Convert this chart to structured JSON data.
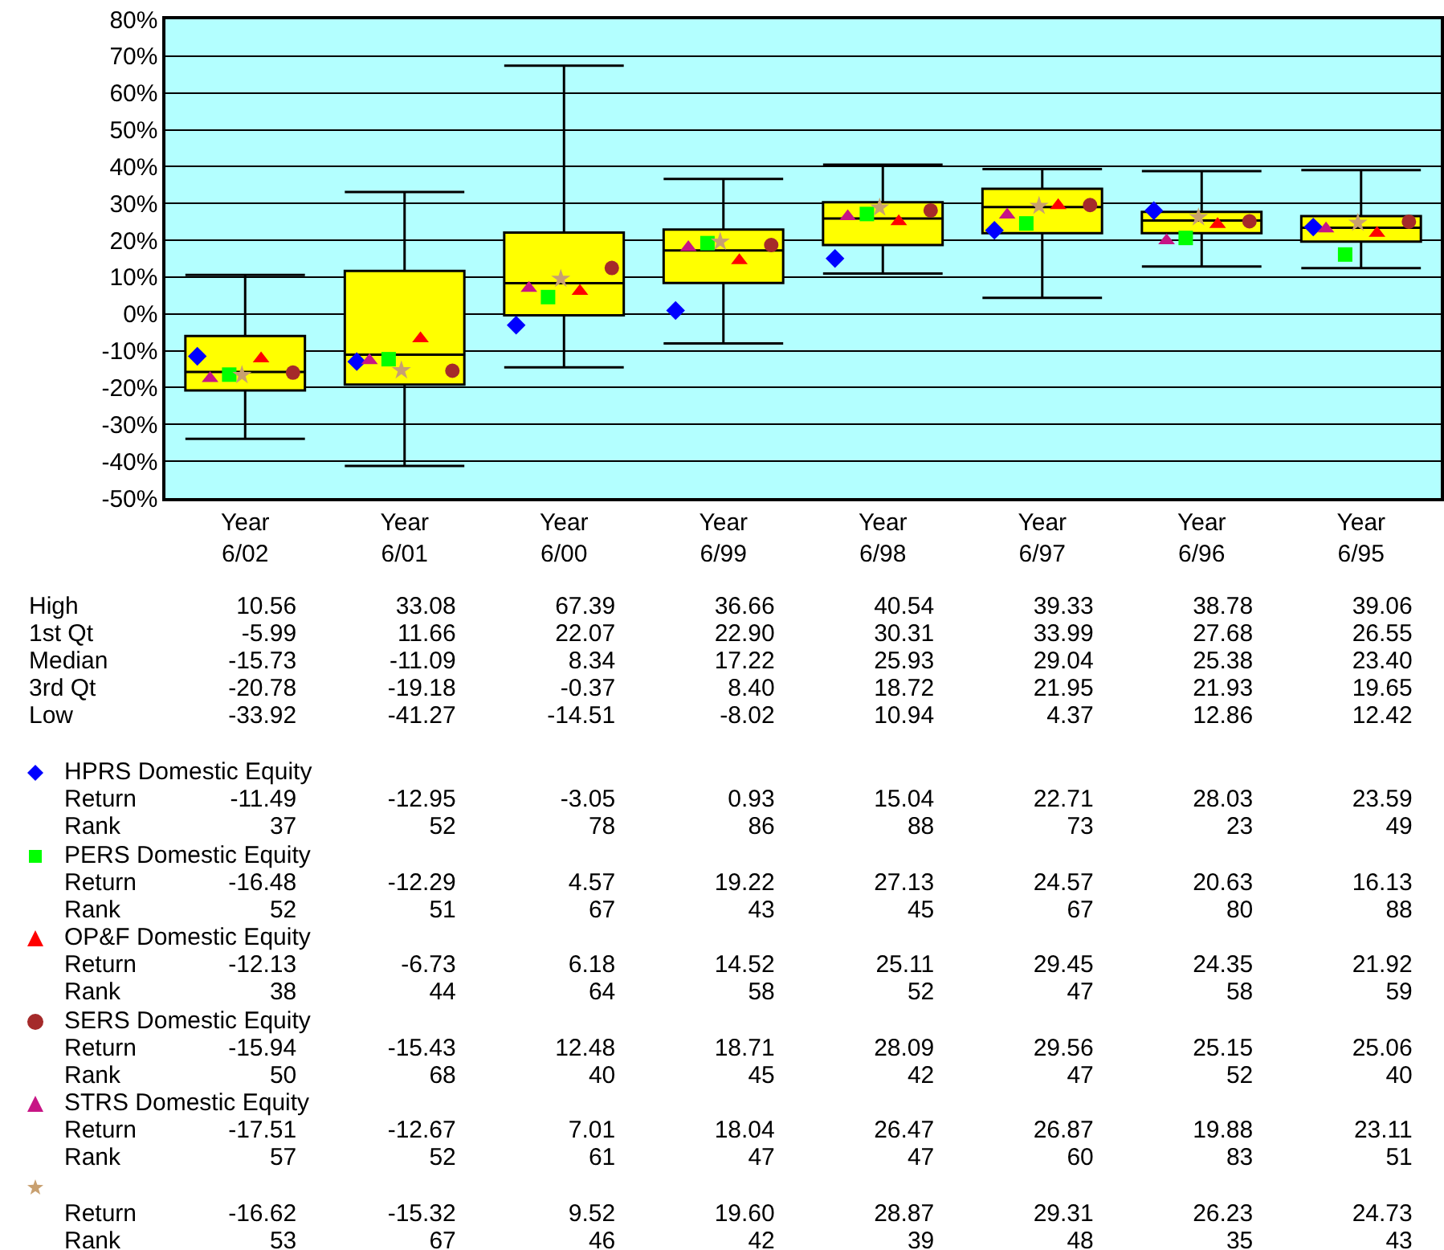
{
  "chart_data": {
    "type": "box",
    "categories": [
      "Year\n6/02",
      "Year\n6/01",
      "Year\n6/00",
      "Year\n6/99",
      "Year\n6/98",
      "Year\n6/97",
      "Year\n6/96",
      "Year\n6/95"
    ],
    "boxes": [
      {
        "low": -33.92,
        "q1": -20.78,
        "median": -15.73,
        "q3": -5.99,
        "high": 10.56
      },
      {
        "low": -41.27,
        "q1": -19.18,
        "median": -11.09,
        "q3": 11.66,
        "high": 33.08
      },
      {
        "low": -14.51,
        "q1": -0.37,
        "median": 8.34,
        "q3": 22.07,
        "high": 67.39
      },
      {
        "low": -8.02,
        "q1": 8.4,
        "median": 17.22,
        "q3": 22.9,
        "high": 36.66
      },
      {
        "low": 10.94,
        "q1": 18.72,
        "median": 25.93,
        "q3": 30.31,
        "high": 40.54
      },
      {
        "low": 4.37,
        "q1": 21.95,
        "median": 29.04,
        "q3": 33.99,
        "high": 39.33
      },
      {
        "low": 12.86,
        "q1": 21.93,
        "median": 25.38,
        "q3": 27.68,
        "high": 38.78
      },
      {
        "low": 12.42,
        "q1": 19.65,
        "median": 23.4,
        "q3": 26.55,
        "high": 39.06
      }
    ],
    "series": [
      {
        "name": "HPRS Domestic Equity",
        "type": "scatter",
        "marker": "diamond",
        "color": "#0000ff",
        "values": [
          -11.49,
          -12.95,
          -3.05,
          0.93,
          15.04,
          22.71,
          28.03,
          23.59
        ]
      },
      {
        "name": "PERS Domestic Equity",
        "type": "scatter",
        "marker": "square",
        "color": "#00ff00",
        "values": [
          -16.48,
          -12.29,
          4.57,
          19.22,
          27.13,
          24.57,
          20.63,
          16.13
        ]
      },
      {
        "name": "OP&F Domestic Equity",
        "type": "scatter",
        "marker": "triangle",
        "color": "#ff0000",
        "values": [
          -12.13,
          -6.73,
          6.18,
          14.52,
          25.11,
          29.45,
          24.35,
          21.92
        ]
      },
      {
        "name": "SERS Domestic Equity",
        "type": "scatter",
        "marker": "circle",
        "color": "#a52a2a",
        "values": [
          -15.94,
          -15.43,
          12.48,
          18.71,
          28.09,
          29.56,
          25.15,
          25.06
        ]
      },
      {
        "name": "STRS Domestic Equity",
        "type": "scatter",
        "marker": "triangle",
        "color": "#c71585",
        "values": [
          -17.51,
          -12.67,
          7.01,
          18.04,
          26.47,
          26.87,
          19.88,
          23.11
        ]
      },
      {
        "type": "scatter",
        "marker": "star",
        "color": "#c8a070",
        "values": [
          -16.62,
          -15.32,
          9.52,
          19.6,
          28.87,
          29.31,
          26.23,
          24.73
        ],
        "value_labels": [
          null,
          null,
          null,
          null,
          null,
          null,
          null,
          null
        ]
      }
    ],
    "ylim": [
      -50,
      80
    ],
    "yticks": [
      {
        "value": -50,
        "label": "-50%"
      },
      {
        "value": -40,
        "label": "-40%"
      },
      {
        "value": -30,
        "label": "-30%"
      },
      {
        "value": -20,
        "label": "-20%"
      },
      {
        "value": -10,
        "label": "-10%"
      },
      {
        "value": 0,
        "label": "0%"
      },
      {
        "value": 10,
        "label": "10%"
      },
      {
        "value": 20,
        "label": "20%"
      },
      {
        "value": 30,
        "label": "30%"
      },
      {
        "value": 40,
        "label": "40%"
      },
      {
        "value": 50,
        "label": "50%"
      },
      {
        "value": 60,
        "label": "60%"
      },
      {
        "value": 70,
        "label": "70%"
      },
      {
        "value": 80,
        "label": "80%"
      }
    ],
    "grid": "y",
    "legend": "bottom",
    "data_labels": true,
    "annotations": [
      "High",
      "1st Qt",
      "Median",
      "3rd Qt",
      "Low",
      "Return",
      "Rank",
      "10.56 33.08 67.39 36.66 40.54 39.33 38.78 39.06",
      "-5.99 11.66 22.07 22.90 30.31 33.99 27.68 26.55",
      "-15.73 -11.09 8.34 17.22 25.93 29.04 25.38 23.40",
      "-20.78 -19.18 -0.37 8.40 18.72 21.95 21.93 19.65",
      "-33.92 -41.27 -14.51 -8.02 10.94 4.37 12.86 12.42",
      "-16.62 -15.32 9.52 19.60 28.87 29.31 26.23 24.73",
      "37 52 78 86 88 73 23 49",
      "52 51 67 43 45 67 80 88",
      "38 44 64 58 52 47 58 59",
      "50 68 40 45 42 47 52 40",
      "57 52 61 47 47 60 83 51",
      "53 67 46 42 39 48 35 43"
    ]
  }
}
